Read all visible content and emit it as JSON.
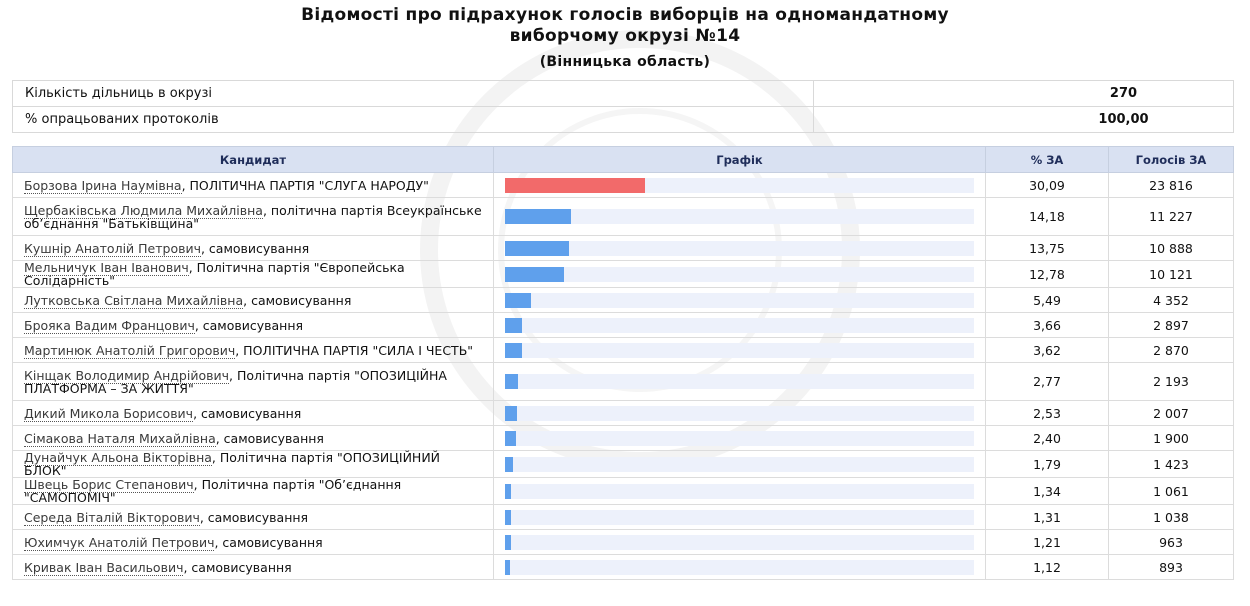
{
  "title_line1": "Відомості про підрахунок голосів виборців на одномандатному",
  "title_line2": "виборчому окрузі №14",
  "subtitle": "(Вінницька область)",
  "summary": {
    "stations_label": "Кількість дільниць в окрузі",
    "stations_value": "270",
    "processed_label": "% опрацьованих протоколів",
    "processed_value": "100,00"
  },
  "columns": {
    "candidate": "Кандидат",
    "chart": "Графік",
    "percent": "% ЗА",
    "votes": "Голосів ЗА"
  },
  "colors": {
    "leader_bar": "#f26a6a",
    "bar": "#5fa0ec",
    "track": "#edf1fb",
    "header_bg": "#d9e1f2"
  },
  "chart_data": {
    "type": "bar",
    "max_percent": 100,
    "rows": [
      {
        "name": "Борзова Ірина Наумівна",
        "party": ", ПОЛІТИЧНА ПАРТІЯ \"СЛУГА НАРОДУ\"",
        "percent": "30,09",
        "value": 30.09,
        "votes": "23 816"
      },
      {
        "name": "Щербаківська Людмила Михайлівна",
        "party": ", політична партія Всеукраїнське об’єднання \"Батьківщина\"",
        "percent": "14,18",
        "value": 14.18,
        "votes": "11 227"
      },
      {
        "name": "Кушнір Анатолій Петрович",
        "party": ", самовисування",
        "percent": "13,75",
        "value": 13.75,
        "votes": "10 888"
      },
      {
        "name": "Мельничук Іван Іванович",
        "party": ", Політична партія \"Європейська Солідарність\"",
        "percent": "12,78",
        "value": 12.78,
        "votes": "10 121"
      },
      {
        "name": "Лутковська Світлана Михайлівна",
        "party": ", самовисування",
        "percent": "5,49",
        "value": 5.49,
        "votes": "4 352"
      },
      {
        "name": "Брояка Вадим Францович",
        "party": ", самовисування",
        "percent": "3,66",
        "value": 3.66,
        "votes": "2 897"
      },
      {
        "name": "Мартинюк Анатолій Григорович",
        "party": ", ПОЛІТИЧНА ПАРТІЯ \"СИЛА І ЧЕСТЬ\"",
        "percent": "3,62",
        "value": 3.62,
        "votes": "2 870"
      },
      {
        "name": "Кінщак Володимир Андрійович",
        "party": ", Політична партія \"ОПОЗИЦІЙНА ПЛАТФОРМА – ЗА ЖИТТЯ\"",
        "percent": "2,77",
        "value": 2.77,
        "votes": "2 193"
      },
      {
        "name": "Дикий Микола Борисович",
        "party": ", самовисування",
        "percent": "2,53",
        "value": 2.53,
        "votes": "2 007"
      },
      {
        "name": "Сімакова Наталя Михайлівна",
        "party": ", самовисування",
        "percent": "2,40",
        "value": 2.4,
        "votes": "1 900"
      },
      {
        "name": "Дунайчук Альона Вікторівна",
        "party": ", Політична партія \"ОПОЗИЦІЙНИЙ БЛОК\"",
        "percent": "1,79",
        "value": 1.79,
        "votes": "1 423"
      },
      {
        "name": "Швець Борис Степанович",
        "party": ", Політична партія \"Об’єднання \"САМОПОМІЧ\"",
        "percent": "1,34",
        "value": 1.34,
        "votes": "1 061"
      },
      {
        "name": "Середа Віталій Вікторович",
        "party": ", самовисування",
        "percent": "1,31",
        "value": 1.31,
        "votes": "1 038"
      },
      {
        "name": "Юхимчук Анатолій Петрович",
        "party": ", самовисування",
        "percent": "1,21",
        "value": 1.21,
        "votes": "963"
      },
      {
        "name": "Кривак Іван Васильович",
        "party": ", самовисування",
        "percent": "1,12",
        "value": 1.12,
        "votes": "893"
      }
    ]
  }
}
